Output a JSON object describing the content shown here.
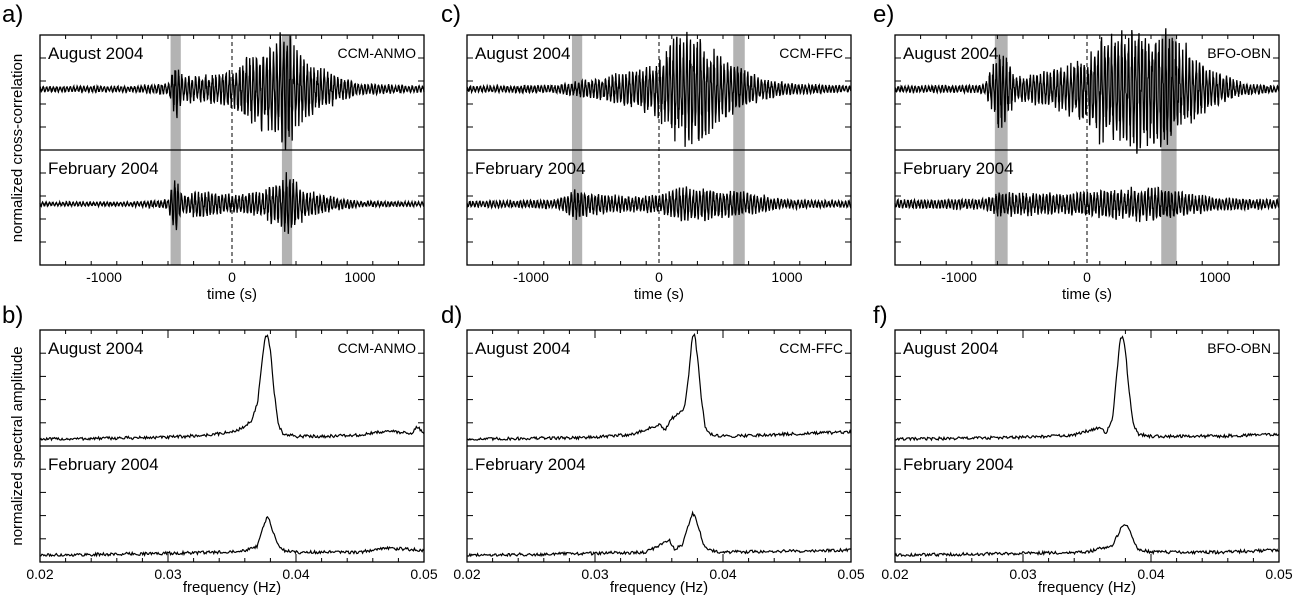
{
  "figure": {
    "ylabel_top": "normalized cross-correlation",
    "ylabel_bottom": "normalized spectral amplitude"
  },
  "chart_data": [
    {
      "panel_label": "a)",
      "type": "line",
      "xlabel": "time (s)",
      "xlim": [
        -1500,
        1500
      ],
      "xticks": [
        -1000,
        0,
        1000
      ],
      "station_pair": "CCM-ANMO",
      "shaded_windows": [
        [
          -480,
          -400
        ],
        [
          390,
          470
        ]
      ],
      "zero_line": 0,
      "series": [
        {
          "name": "August 2004",
          "envelope_x": [
            -1500,
            -800,
            -500,
            -440,
            -380,
            -200,
            0,
            100,
            200,
            300,
            390,
            420,
            450,
            480,
            600,
            800,
            1000,
            1500
          ],
          "envelope_y": [
            0.05,
            0.05,
            0.1,
            0.5,
            0.2,
            0.25,
            0.3,
            0.5,
            0.6,
            0.75,
            0.95,
            1.0,
            0.95,
            0.7,
            0.45,
            0.25,
            0.1,
            0.05
          ]
        },
        {
          "name": "February 2004",
          "envelope_x": [
            -1500,
            -800,
            -500,
            -440,
            -380,
            -250,
            -100,
            0,
            200,
            400,
            430,
            470,
            600,
            800,
            1000,
            1500
          ],
          "envelope_y": [
            0.05,
            0.05,
            0.1,
            0.75,
            0.2,
            0.35,
            0.25,
            0.2,
            0.3,
            0.55,
            0.75,
            0.6,
            0.3,
            0.15,
            0.07,
            0.05
          ]
        }
      ]
    },
    {
      "panel_label": "c)",
      "type": "line",
      "xlabel": "time (s)",
      "xlim": [
        -1500,
        1500
      ],
      "xticks": [
        -1000,
        0,
        1000
      ],
      "station_pair": "CCM-FFC",
      "shaded_windows": [
        [
          -680,
          -600
        ],
        [
          580,
          670
        ]
      ],
      "zero_line": 0,
      "series": [
        {
          "name": "August 2004",
          "envelope_x": [
            -1500,
            -800,
            -650,
            -400,
            -200,
            0,
            100,
            200,
            260,
            350,
            500,
            650,
            800,
            1000,
            1500
          ],
          "envelope_y": [
            0.05,
            0.07,
            0.12,
            0.22,
            0.32,
            0.5,
            0.8,
            0.95,
            1.0,
            0.8,
            0.55,
            0.35,
            0.2,
            0.1,
            0.05
          ]
        },
        {
          "name": "February 2004",
          "envelope_x": [
            -1500,
            -800,
            -650,
            -400,
            -200,
            0,
            200,
            400,
            630,
            800,
            1000,
            1500
          ],
          "envelope_y": [
            0.07,
            0.1,
            0.35,
            0.2,
            0.18,
            0.2,
            0.4,
            0.35,
            0.3,
            0.2,
            0.1,
            0.07
          ]
        }
      ]
    },
    {
      "panel_label": "e)",
      "type": "line",
      "xlabel": "time (s)",
      "xlim": [
        -1500,
        1500
      ],
      "xticks": [
        -1000,
        0,
        1000
      ],
      "station_pair": "BFO-OBN",
      "shaded_windows": [
        [
          -720,
          -620
        ],
        [
          580,
          700
        ]
      ],
      "zero_line": 0,
      "series": [
        {
          "name": "August 2004",
          "envelope_x": [
            -1500,
            -800,
            -680,
            -550,
            -300,
            -100,
            0,
            100,
            300,
            500,
            640,
            700,
            850,
            1000,
            1200,
            1500
          ],
          "envelope_y": [
            0.05,
            0.07,
            0.75,
            0.2,
            0.3,
            0.45,
            0.6,
            0.85,
            0.95,
            1.0,
            1.0,
            0.85,
            0.55,
            0.3,
            0.12,
            0.05
          ]
        },
        {
          "name": "February 2004",
          "envelope_x": [
            -1500,
            -800,
            -680,
            -400,
            -100,
            0,
            300,
            500,
            640,
            800,
            1000,
            1500
          ],
          "envelope_y": [
            0.1,
            0.12,
            0.3,
            0.25,
            0.25,
            0.3,
            0.35,
            0.4,
            0.35,
            0.25,
            0.15,
            0.1
          ]
        }
      ]
    },
    {
      "panel_label": "b)",
      "type": "line",
      "xlabel": "frequency (Hz)",
      "xlim": [
        0.02,
        0.05
      ],
      "xticks": [
        0.02,
        0.03,
        0.04,
        0.05
      ],
      "station_pair": "CCM-ANMO",
      "series": [
        {
          "name": "August 2004",
          "x": [
            0.02,
            0.025,
            0.03,
            0.033,
            0.035,
            0.036,
            0.0365,
            0.037,
            0.0373,
            0.0376,
            0.0378,
            0.038,
            0.0383,
            0.0386,
            0.039,
            0.04,
            0.042,
            0.045,
            0.047,
            0.049,
            0.0495,
            0.05
          ],
          "y": [
            0.0,
            0.01,
            0.02,
            0.04,
            0.07,
            0.12,
            0.18,
            0.35,
            0.7,
            0.98,
            1.0,
            0.85,
            0.45,
            0.15,
            0.05,
            0.03,
            0.03,
            0.04,
            0.08,
            0.06,
            0.12,
            0.05
          ]
        },
        {
          "name": "February 2004",
          "x": [
            0.02,
            0.025,
            0.03,
            0.034,
            0.036,
            0.037,
            0.0375,
            0.0378,
            0.038,
            0.0385,
            0.039,
            0.04,
            0.045,
            0.047,
            0.05
          ],
          "y": [
            0.0,
            0.01,
            0.02,
            0.03,
            0.05,
            0.09,
            0.3,
            0.38,
            0.3,
            0.12,
            0.05,
            0.03,
            0.03,
            0.07,
            0.05
          ]
        }
      ]
    },
    {
      "panel_label": "d)",
      "type": "line",
      "xlabel": "frequency (Hz)",
      "xlim": [
        0.02,
        0.05
      ],
      "xticks": [
        0.02,
        0.03,
        0.04,
        0.05
      ],
      "station_pair": "CCM-FFC",
      "series": [
        {
          "name": "August 2004",
          "x": [
            0.02,
            0.025,
            0.03,
            0.033,
            0.035,
            0.0355,
            0.036,
            0.0365,
            0.037,
            0.0373,
            0.0376,
            0.0378,
            0.038,
            0.0383,
            0.0386,
            0.039,
            0.04,
            0.045,
            0.05
          ],
          "y": [
            0.0,
            0.01,
            0.02,
            0.05,
            0.14,
            0.09,
            0.2,
            0.25,
            0.3,
            0.6,
            0.98,
            1.0,
            0.8,
            0.4,
            0.12,
            0.05,
            0.03,
            0.05,
            0.07
          ]
        },
        {
          "name": "February 2004",
          "x": [
            0.02,
            0.025,
            0.03,
            0.034,
            0.0358,
            0.0362,
            0.0368,
            0.0372,
            0.0376,
            0.0378,
            0.038,
            0.0385,
            0.039,
            0.04,
            0.045,
            0.05
          ],
          "y": [
            0.0,
            0.01,
            0.02,
            0.03,
            0.15,
            0.06,
            0.1,
            0.25,
            0.4,
            0.38,
            0.3,
            0.1,
            0.05,
            0.03,
            0.04,
            0.05
          ]
        }
      ]
    },
    {
      "panel_label": "f)",
      "type": "line",
      "xlabel": "frequency (Hz)",
      "xlim": [
        0.02,
        0.05
      ],
      "xticks": [
        0.02,
        0.03,
        0.04,
        0.05
      ],
      "station_pair": "BFO-OBN",
      "series": [
        {
          "name": "August 2004",
          "x": [
            0.02,
            0.025,
            0.03,
            0.034,
            0.036,
            0.0365,
            0.037,
            0.0373,
            0.0376,
            0.0378,
            0.038,
            0.0383,
            0.0386,
            0.039,
            0.04,
            0.045,
            0.05
          ],
          "y": [
            0.0,
            0.01,
            0.02,
            0.04,
            0.12,
            0.06,
            0.2,
            0.6,
            0.97,
            1.0,
            0.85,
            0.45,
            0.15,
            0.05,
            0.03,
            0.03,
            0.05
          ]
        },
        {
          "name": "February 2004",
          "x": [
            0.02,
            0.025,
            0.03,
            0.035,
            0.037,
            0.0375,
            0.0378,
            0.038,
            0.0383,
            0.0386,
            0.039,
            0.04,
            0.045,
            0.05
          ],
          "y": [
            0.0,
            0.01,
            0.02,
            0.03,
            0.1,
            0.22,
            0.3,
            0.3,
            0.25,
            0.15,
            0.06,
            0.03,
            0.03,
            0.05
          ]
        }
      ]
    }
  ]
}
